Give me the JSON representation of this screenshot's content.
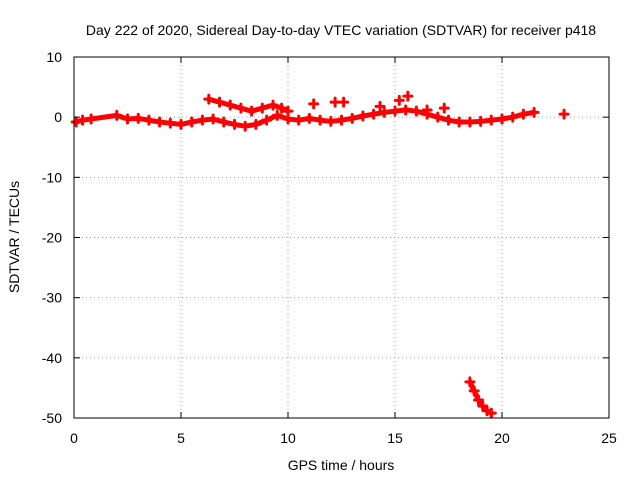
{
  "chart_data": {
    "type": "scatter",
    "title": "Day 222 of 2020, Sidereal Day-to-day VTEC variation (SDTVAR) for receiver p418",
    "xlabel": "GPS time / hours",
    "ylabel": "SDTVAR / TECUs",
    "xlim": [
      0,
      25
    ],
    "ylim": [
      -50,
      10
    ],
    "xticks": [
      0,
      5,
      10,
      15,
      20,
      25
    ],
    "yticks": [
      10,
      0,
      -10,
      -20,
      -30,
      -40,
      -50
    ],
    "grid": true,
    "marker": "plus",
    "color": "#ff0000",
    "series": [
      {
        "name": "lower-track",
        "x": [
          0.1,
          0.4,
          0.8,
          2.0,
          2.5,
          3.0,
          3.5,
          4.0,
          4.5,
          5.0,
          5.5,
          6.0,
          6.5,
          7.0,
          7.5,
          8.0,
          8.5,
          9.0,
          9.5,
          10.0,
          10.5,
          11.0,
          11.5,
          12.0,
          12.5,
          13.0,
          13.5,
          14.0,
          14.5,
          15.0,
          15.5,
          16.0,
          16.5,
          17.0,
          17.5,
          18.0,
          18.5,
          19.0,
          19.5,
          20.0,
          20.5,
          21.0,
          21.5
        ],
        "y": [
          -0.8,
          -0.5,
          -0.3,
          0.3,
          -0.3,
          -0.2,
          -0.5,
          -0.8,
          -1.0,
          -1.2,
          -0.8,
          -0.5,
          -0.3,
          -0.8,
          -1.2,
          -1.5,
          -1.2,
          -0.5,
          0.3,
          -0.3,
          -0.5,
          -0.2,
          -0.5,
          -0.7,
          -0.5,
          -0.2,
          0.2,
          0.5,
          0.8,
          1.0,
          1.2,
          1.0,
          0.5,
          0.0,
          -0.5,
          -0.8,
          -0.8,
          -0.7,
          -0.5,
          -0.3,
          0.0,
          0.5,
          0.8
        ]
      },
      {
        "name": "upper-track",
        "x": [
          6.3,
          6.8,
          7.3,
          7.8,
          8.3,
          8.8,
          9.3,
          9.7,
          10.0
        ],
        "y": [
          3.0,
          2.5,
          2.0,
          1.5,
          1.0,
          1.5,
          2.0,
          1.5,
          1.0
        ]
      },
      {
        "name": "spikes",
        "x": [
          11.2,
          12.2,
          12.6,
          14.3,
          15.2,
          15.6,
          16.5,
          17.3,
          22.9
        ],
        "y": [
          2.2,
          2.5,
          2.5,
          1.8,
          2.8,
          3.5,
          1.2,
          1.5,
          0.5
        ]
      },
      {
        "name": "dropout",
        "x": [
          18.5,
          18.7,
          18.9,
          19.1,
          19.3,
          19.5
        ],
        "y": [
          -44,
          -45.5,
          -47,
          -48,
          -48.8,
          -49.2
        ]
      }
    ]
  }
}
